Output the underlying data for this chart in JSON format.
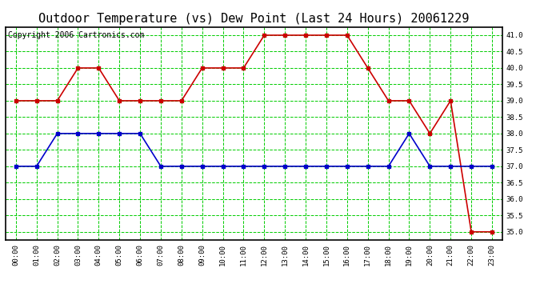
{
  "title": "Outdoor Temperature (vs) Dew Point (Last 24 Hours) 20061229",
  "copyright": "Copyright 2006 Cartronics.com",
  "hours": [
    0,
    1,
    2,
    3,
    4,
    5,
    6,
    7,
    8,
    9,
    10,
    11,
    12,
    13,
    14,
    15,
    16,
    17,
    18,
    19,
    20,
    21,
    22,
    23
  ],
  "temp": [
    39,
    39,
    39,
    40,
    40,
    39,
    39,
    39,
    39,
    40,
    40,
    40,
    41,
    41,
    41,
    41,
    41,
    40,
    39,
    39,
    38,
    39,
    35,
    35
  ],
  "dewpoint": [
    37,
    37,
    38,
    38,
    38,
    38,
    38,
    37,
    37,
    37,
    37,
    37,
    37,
    37,
    37,
    37,
    37,
    37,
    37,
    38,
    37,
    37,
    37,
    37
  ],
  "temp_color": "#cc0000",
  "dew_color": "#0000cc",
  "bg_color": "#ffffff",
  "grid_color": "#00cc00",
  "ylim_min": 34.75,
  "ylim_max": 41.25,
  "ytick_min": 35.0,
  "ytick_max": 41.0,
  "ytick_step": 0.5,
  "title_fontsize": 11,
  "copyright_fontsize": 7,
  "markersize": 3,
  "linewidth": 1.2
}
